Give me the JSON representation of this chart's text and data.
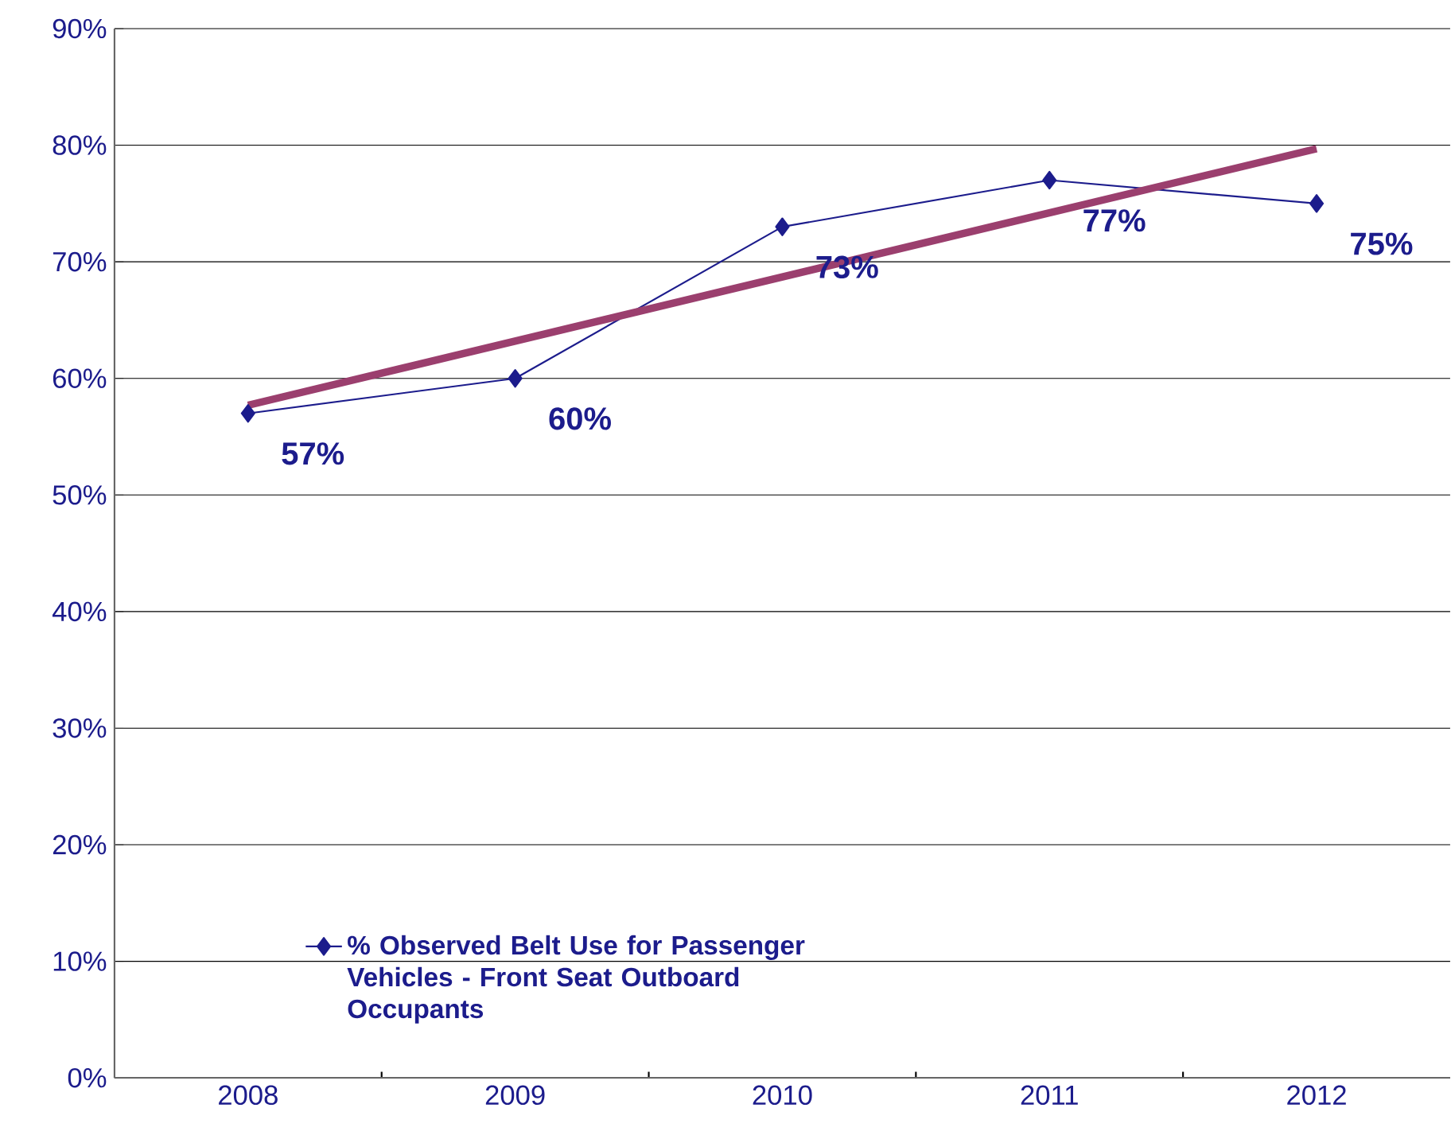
{
  "chart_data": {
    "type": "line",
    "x": [
      2008,
      2009,
      2010,
      2011,
      2012
    ],
    "xlim": [
      2007.5,
      2012.5
    ],
    "xticks": [
      2008,
      2009,
      2010,
      2011,
      2012
    ],
    "ylim": [
      0,
      90
    ],
    "yticks": [
      {
        "value": 0,
        "label": "0%"
      },
      {
        "value": 10,
        "label": "10%"
      },
      {
        "value": 20,
        "label": "20%"
      },
      {
        "value": 30,
        "label": "30%"
      },
      {
        "value": 40,
        "label": "40%"
      },
      {
        "value": 50,
        "label": "50%"
      },
      {
        "value": 60,
        "label": "60%"
      },
      {
        "value": 70,
        "label": "70%"
      },
      {
        "value": 80,
        "label": "80%"
      },
      {
        "value": 90,
        "label": "90%"
      }
    ],
    "grid": "y",
    "legend": "bottom left",
    "marker": "diamond",
    "line_style": "solid",
    "series": [
      {
        "name": "% Observed Belt Use for Passenger Vehicles - Front Seat Outboard Occupants",
        "color": "#1c1c8c",
        "values": [
          57,
          60,
          73,
          77,
          75
        ],
        "data_labels": true,
        "value_labels": [
          "57%",
          "60%",
          "73%",
          "77%",
          "75%"
        ]
      },
      {
        "type": "line",
        "color": "#9b3f6e",
        "x": [
          2008,
          2012
        ],
        "values": [
          57.7,
          79.7
        ],
        "marker": "none"
      }
    ]
  }
}
